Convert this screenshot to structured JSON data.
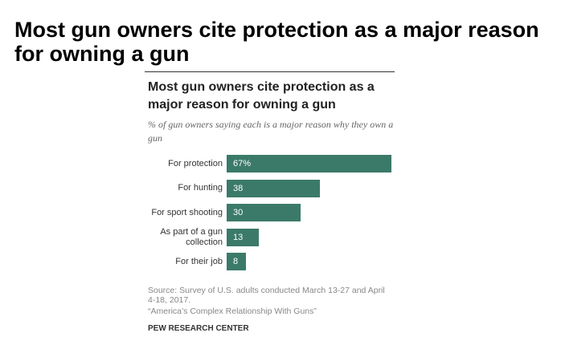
{
  "headline": "Most gun owners cite protection as a major reason for owning a gun",
  "chart_data": {
    "type": "bar",
    "orientation": "horizontal",
    "title": "Most gun owners cite protection as a major reason for owning a gun",
    "subtitle": "% of gun owners saying each is a major reason why they own a gun",
    "categories": [
      "For protection",
      "For hunting",
      "For sport shooting",
      "As part of a gun collection",
      "For their job"
    ],
    "values": [
      67,
      38,
      30,
      13,
      8
    ],
    "value_labels": [
      "67%",
      "38",
      "30",
      "13",
      "8"
    ],
    "color": "#3b7a69",
    "source": "Source: Survey of U.S. adults conducted March 13-27 and April 4-18, 2017.",
    "note": "“America’s Complex Relationship With Guns”",
    "footer": "PEW RESEARCH CENTER"
  }
}
